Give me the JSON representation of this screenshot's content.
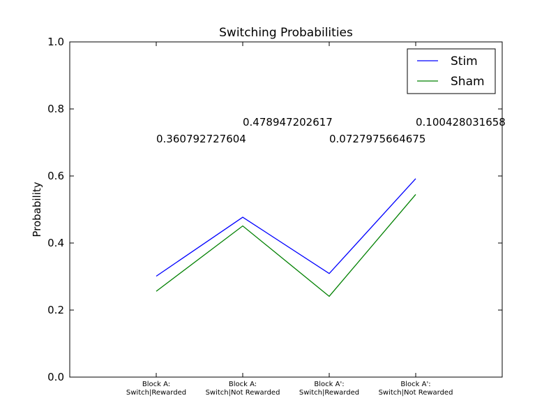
{
  "chart_data": {
    "type": "line",
    "title": "Switching Probabilities",
    "xlabel": "",
    "ylabel": "Probability",
    "ylim": [
      0.0,
      1.0
    ],
    "xlim": [
      -1,
      4
    ],
    "yticks": [
      "0.0",
      "0.2",
      "0.4",
      "0.6",
      "0.8",
      "1.0"
    ],
    "categories": [
      [
        "Block A:",
        "Switch|Rewarded"
      ],
      [
        "Block A:",
        "Switch|Not Rewarded"
      ],
      [
        "Block A':",
        "Switch|Rewarded"
      ],
      [
        "Block A':",
        "Switch|Not Rewarded"
      ]
    ],
    "series": [
      {
        "name": "Stim",
        "color": "#0000ff",
        "values": [
          0.301,
          0.477,
          0.309,
          0.592
        ]
      },
      {
        "name": "Sham",
        "color": "#008000",
        "values": [
          0.256,
          0.451,
          0.241,
          0.545
        ]
      }
    ],
    "annotations": [
      {
        "text": "0.360792727604",
        "x": 0,
        "y": 0.7
      },
      {
        "text": "0.478947202617",
        "x": 1,
        "y": 0.75
      },
      {
        "text": "0.0727975664675",
        "x": 2,
        "y": 0.7
      },
      {
        "text": "0.100428031658",
        "x": 3,
        "y": 0.75
      }
    ],
    "legend_position": "top-right",
    "grid": false
  }
}
